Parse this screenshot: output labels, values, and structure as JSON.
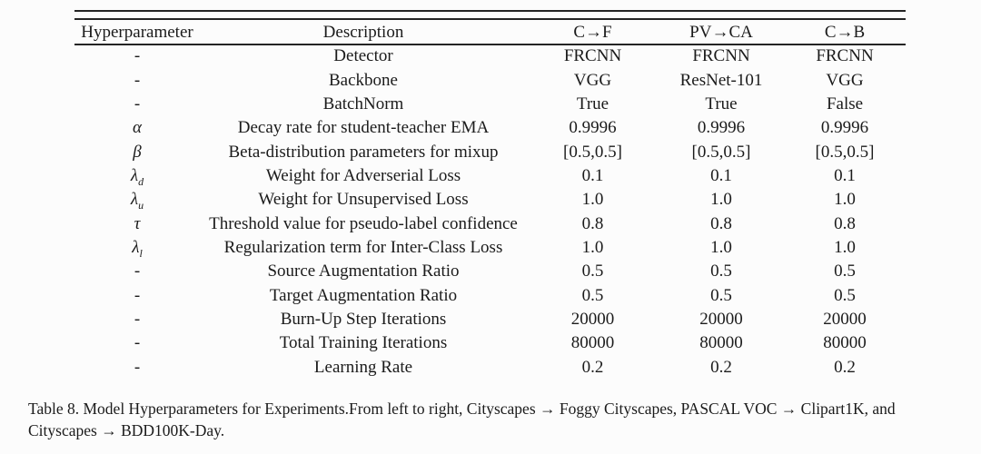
{
  "table": {
    "columns": [
      {
        "label": "Hyperparameter"
      },
      {
        "label": "Description"
      },
      {
        "label": "C→F"
      },
      {
        "label": "PV→CA"
      },
      {
        "label": "C→B"
      }
    ],
    "rows": [
      {
        "symbol": "-",
        "sub": "",
        "description": "Detector",
        "values": [
          "FRCNN",
          "FRCNN",
          "FRCNN"
        ]
      },
      {
        "symbol": "-",
        "sub": "",
        "description": "Backbone",
        "values": [
          "VGG",
          "ResNet-101",
          "VGG"
        ]
      },
      {
        "symbol": "-",
        "sub": "",
        "description": "BatchNorm",
        "values": [
          "True",
          "True",
          "False"
        ]
      },
      {
        "symbol": "α",
        "sub": "",
        "description": "Decay rate for student-teacher EMA",
        "values": [
          "0.9996",
          "0.9996",
          "0.9996"
        ]
      },
      {
        "symbol": "β",
        "sub": "",
        "description": "Beta-distribution parameters for mixup",
        "values": [
          "[0.5,0.5]",
          "[0.5,0.5]",
          "[0.5,0.5]"
        ]
      },
      {
        "symbol": "λ",
        "sub": "d",
        "description": "Weight for Adverserial Loss",
        "values": [
          "0.1",
          "0.1",
          "0.1"
        ]
      },
      {
        "symbol": "λ",
        "sub": "u",
        "description": "Weight for Unsupervised Loss",
        "values": [
          "1.0",
          "1.0",
          "1.0"
        ]
      },
      {
        "symbol": "τ",
        "sub": "",
        "description": "Threshold value for pseudo-label confidence",
        "values": [
          "0.8",
          "0.8",
          "0.8"
        ]
      },
      {
        "symbol": "λ",
        "sub": "l",
        "description": "Regularization term for Inter-Class Loss",
        "values": [
          "1.0",
          "1.0",
          "1.0"
        ]
      },
      {
        "symbol": "-",
        "sub": "",
        "description": "Source Augmentation Ratio",
        "values": [
          "0.5",
          "0.5",
          "0.5"
        ]
      },
      {
        "symbol": "-",
        "sub": "",
        "description": "Target Augmentation Ratio",
        "values": [
          "0.5",
          "0.5",
          "0.5"
        ]
      },
      {
        "symbol": "-",
        "sub": "",
        "description": "Burn-Up Step Iterations",
        "values": [
          "20000",
          "20000",
          "20000"
        ]
      },
      {
        "symbol": "-",
        "sub": "",
        "description": "Total Training Iterations",
        "values": [
          "80000",
          "80000",
          "80000"
        ]
      },
      {
        "symbol": "-",
        "sub": "",
        "description": "Learning Rate",
        "values": [
          "0.2",
          "0.2",
          "0.2"
        ]
      }
    ]
  },
  "caption": {
    "lines": [
      "Table 8. Model Hyperparameters for Experiments.From left to right, Cityscapes → Foggy Cityscapes, PASCAL VOC → Clipart1K, and",
      "Cityscapes → BDD100K-Day."
    ],
    "full_text": "Table 8. Model Hyperparameters for Experiments.From left to right, Cityscapes → Foggy Cityscapes, PASCAL VOC → Clipart1K, and Cityscapes → BDD100K-Day."
  },
  "colors": {
    "text": "#1b1b1b",
    "rule": "#242424",
    "background": "#fcfcfc"
  }
}
